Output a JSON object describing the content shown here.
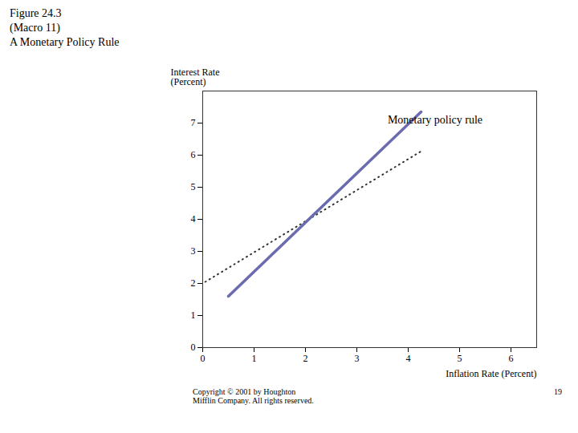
{
  "chart_data": {
    "type": "line",
    "title": "Figure 24.3\n(Macro 11)\nA Monetary Policy Rule",
    "xlabel": "Inflation Rate (Percent)",
    "ylabel": "Interest Rate\n(Percent)",
    "series": [
      {
        "x": [
          0.05,
          4.25
        ],
        "values": [
          2.05,
          6.12
        ],
        "color": "#333333",
        "line_style": "dotted"
      },
      {
        "x": [
          0.5,
          4.25
        ],
        "values": [
          1.6,
          7.35
        ],
        "color": "#6B6BAF",
        "line_style": "solid"
      }
    ],
    "xlim": [
      0,
      6.5
    ],
    "ylim": [
      0,
      8
    ],
    "xticks": [
      0,
      1,
      2,
      3,
      4,
      5,
      6
    ],
    "yticks": [
      0,
      1,
      2,
      3,
      4,
      5,
      6,
      7
    ],
    "grid": false,
    "annotations": [
      {
        "text": "Monetary policy rule",
        "x": 3.6,
        "y": 7.0
      }
    ],
    "caption": "Copyright © 2001 by Houghton\nMifflin Company. All rights reserved.",
    "page_number": "19"
  }
}
